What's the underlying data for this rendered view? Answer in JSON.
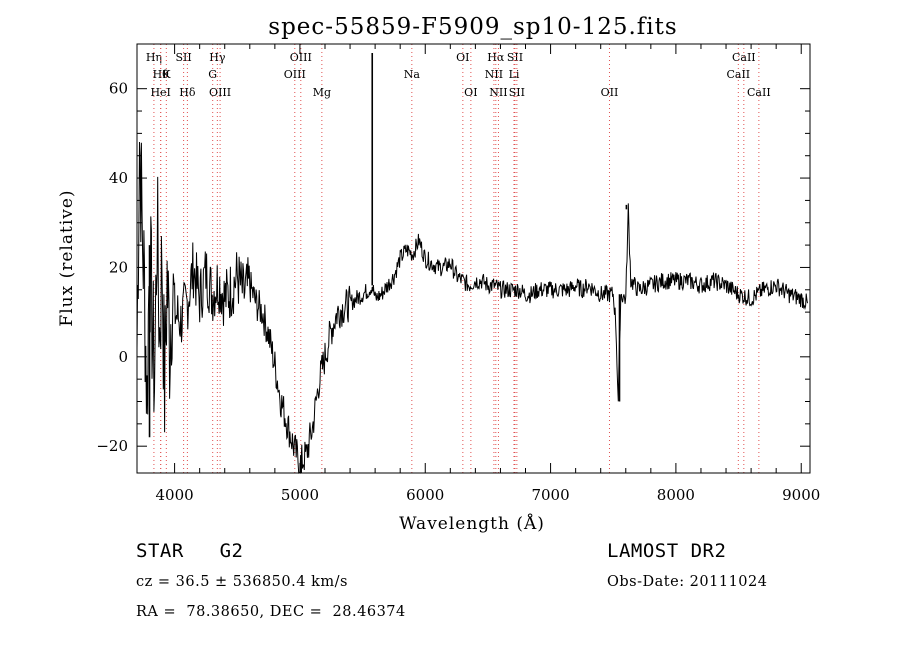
{
  "chart_data": {
    "type": "line",
    "title": "spec-55859-F5909_sp10-125.fits",
    "xlabel": "Wavelength (Å)",
    "ylabel": "Flux (relative)",
    "xlim": [
      3700,
      9070
    ],
    "ylim": [
      -26,
      70
    ],
    "xticks": [
      4000,
      5000,
      6000,
      7000,
      8000,
      9000
    ],
    "yticks": [
      -20,
      0,
      20,
      40,
      60
    ],
    "grid": false,
    "series": [
      {
        "name": "flux",
        "x": [
          3700,
          3720,
          3740,
          3760,
          3780,
          3800,
          3820,
          3840,
          3860,
          3880,
          3900,
          3920,
          3940,
          3960,
          3980,
          4000,
          4050,
          4100,
          4150,
          4200,
          4250,
          4300,
          4350,
          4400,
          4450,
          4500,
          4550,
          4600,
          4650,
          4700,
          4750,
          4800,
          4850,
          4900,
          4950,
          5000,
          5050,
          5100,
          5150,
          5200,
          5250,
          5300,
          5350,
          5400,
          5450,
          5500,
          5550,
          5577,
          5600,
          5650,
          5700,
          5750,
          5800,
          5850,
          5900,
          5950,
          6000,
          6050,
          6100,
          6150,
          6200,
          6250,
          6300,
          6350,
          6400,
          6450,
          6500,
          6550,
          6600,
          6650,
          6700,
          6750,
          6800,
          6850,
          6900,
          6950,
          7000,
          7050,
          7100,
          7150,
          7200,
          7250,
          7300,
          7350,
          7400,
          7450,
          7500,
          7520,
          7540,
          7560,
          7600,
          7620,
          7640,
          7700,
          7800,
          7900,
          8000,
          8100,
          8200,
          8300,
          8400,
          8500,
          8600,
          8700,
          8800,
          8900,
          9000,
          9050
        ],
        "values": [
          2,
          50,
          30,
          15,
          -10,
          25,
          8,
          -5,
          30,
          5,
          22,
          -8,
          18,
          3,
          15,
          10,
          8,
          12,
          20,
          13,
          19,
          14,
          17,
          13,
          15,
          18,
          14,
          16,
          12,
          10,
          5,
          -2,
          -10,
          -15,
          -20,
          -24,
          -22,
          -16,
          -6,
          0,
          6,
          10,
          11,
          12,
          13,
          14,
          15,
          16,
          13,
          14,
          16,
          18,
          22,
          24,
          23,
          26,
          22,
          21,
          20,
          20,
          21,
          18,
          17,
          16,
          17,
          17,
          16,
          16,
          15,
          15,
          15,
          15,
          14,
          14,
          15,
          15,
          15,
          15,
          15,
          15,
          16,
          15,
          16,
          15,
          14,
          14,
          14,
          8,
          -10,
          14,
          13,
          33,
          17,
          15,
          16,
          17,
          17,
          17,
          16,
          17,
          16,
          14,
          13,
          15,
          16,
          14,
          13,
          12
        ]
      }
    ],
    "spikes": [
      {
        "x": 5577,
        "value": 68
      },
      {
        "x": 7605,
        "value": 34
      },
      {
        "x": 7550,
        "value": -10
      },
      {
        "x": 5010,
        "value": -26
      },
      {
        "x": 3800,
        "value": -18
      }
    ],
    "lines": [
      {
        "x": 3835,
        "label": "Hη",
        "row": 0
      },
      {
        "x": 3889,
        "label": "Hθ",
        "row": 1
      },
      {
        "x": 3934,
        "label": "K",
        "row": 1
      },
      {
        "x": 3889,
        "label": "HeI",
        "row": 2
      },
      {
        "x": 4072,
        "label": "SII",
        "row": 0
      },
      {
        "x": 4102,
        "label": "Hδ",
        "row": 2
      },
      {
        "x": 4341,
        "label": "Hγ",
        "row": 0
      },
      {
        "x": 4304,
        "label": "G",
        "row": 1
      },
      {
        "x": 4363,
        "label": "OIII",
        "row": 2
      },
      {
        "x": 5007,
        "label": "OIII",
        "row": 0
      },
      {
        "x": 4959,
        "label": "OIII",
        "row": 1
      },
      {
        "x": 5175,
        "label": "Mg",
        "row": 2
      },
      {
        "x": 5893,
        "label": "Na",
        "row": 1
      },
      {
        "x": 6300,
        "label": "OI",
        "row": 0
      },
      {
        "x": 6364,
        "label": "OI",
        "row": 2
      },
      {
        "x": 6563,
        "label": "Hα",
        "row": 0
      },
      {
        "x": 6716,
        "label": "SII",
        "row": 0
      },
      {
        "x": 6548,
        "label": "NII",
        "row": 1
      },
      {
        "x": 6708,
        "label": "Li",
        "row": 1
      },
      {
        "x": 6584,
        "label": "NII",
        "row": 2
      },
      {
        "x": 6731,
        "label": "SII",
        "row": 2
      },
      {
        "x": 7470,
        "label": "OII",
        "row": 2
      },
      {
        "x": 8542,
        "label": "CaII",
        "row": 0
      },
      {
        "x": 8498,
        "label": "CaII",
        "row": 1
      },
      {
        "x": 8662,
        "label": "CaII",
        "row": 2
      }
    ]
  },
  "info": {
    "class_line": "STAR   G2",
    "survey": "LAMOST DR2",
    "cz_line": "cz = 36.5 ± 536850.4 km/s",
    "obs_date": "Obs-Date: 20111024",
    "radec_line": "RA =  78.38650, DEC =  28.46374"
  }
}
